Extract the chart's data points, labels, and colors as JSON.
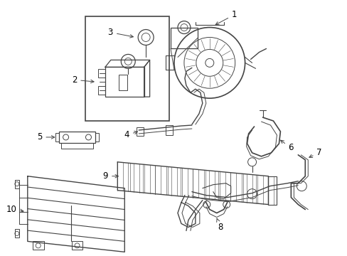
{
  "bg_color": "#ffffff",
  "lc": "#444444",
  "lw": 0.8,
  "figsize": [
    4.89,
    3.6
  ],
  "dpi": 100
}
